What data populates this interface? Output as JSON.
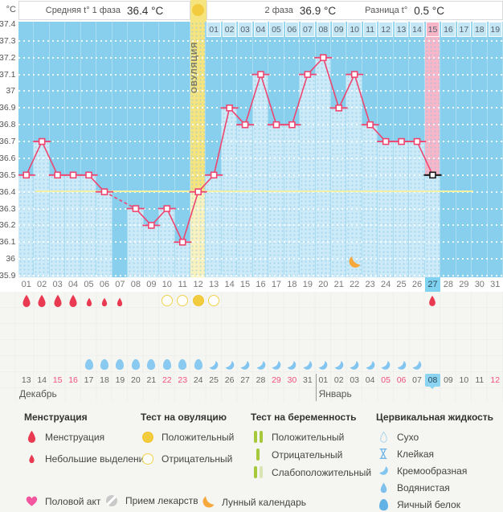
{
  "header": {
    "unit": "°C",
    "phase1_label": "Средняя t° 1 фаза",
    "phase1_value": "36.4 °C",
    "phase2_label": "2 фаза",
    "phase2_value": "36.9 °C",
    "diff_label": "Разница t°",
    "diff_value": "0.5 °C",
    "ovulation_label": "ОВУЛЯЦИЯ"
  },
  "chart_data": {
    "type": "line",
    "unit": "°C",
    "ylim": [
      35.9,
      37.4
    ],
    "ytick_step": 0.1,
    "ytick_labels": [
      "37.4",
      "37.3",
      "37.2",
      "37.1",
      "37",
      "36.9",
      "36.8",
      "36.7",
      "36.6",
      "36.5",
      "36.4",
      "36.3",
      "36.2",
      "36.1",
      "36",
      "35.9"
    ],
    "x_cycle_days": [
      "01",
      "02",
      "03",
      "04",
      "05",
      "06",
      "07",
      "08",
      "09",
      "10",
      "11",
      "12",
      "13",
      "14",
      "15",
      "16",
      "17",
      "18",
      "19",
      "20",
      "21",
      "22",
      "23",
      "24",
      "25",
      "26",
      "27",
      "28",
      "29",
      "30",
      "31"
    ],
    "temps_by_cycle_day": [
      36.5,
      36.7,
      36.5,
      36.5,
      36.5,
      36.4,
      null,
      36.3,
      36.2,
      36.3,
      36.1,
      36.4,
      36.5,
      36.9,
      36.8,
      37.1,
      36.8,
      36.8,
      37.1,
      37.2,
      36.9,
      37.1,
      36.8,
      36.7,
      36.7,
      36.7,
      36.5,
      null,
      null,
      null,
      null
    ],
    "coverline_temp": 36.4,
    "missing_day": 7,
    "ovulation_day": 12,
    "current_day": 27,
    "phase2_day_labels": [
      "01",
      "02",
      "03",
      "04",
      "05",
      "06",
      "07",
      "08",
      "09",
      "10",
      "11",
      "12",
      "13",
      "14",
      "15",
      "16",
      "17",
      "18",
      "19"
    ],
    "phase2_current_label": "15",
    "lunar_calendar_day": 22,
    "grid": "dotted-white",
    "legend_position": "bottom"
  },
  "events": {
    "menstruation_heavy_days": [
      1,
      2,
      3,
      4
    ],
    "menstruation_light_days": [
      5,
      6,
      7
    ],
    "menstruation_new_cycle_days": [
      27
    ],
    "ovulation_test_negative_days": [
      10,
      11,
      13
    ],
    "ovulation_test_positive_days": [
      12
    ],
    "cervical_eggwhite_days": [
      5,
      6,
      7,
      8,
      9,
      10,
      11,
      12
    ],
    "cervical_creamy_days": [
      13,
      14,
      15,
      16,
      17,
      18,
      19,
      20,
      21,
      22,
      23,
      24,
      25,
      26
    ]
  },
  "calendar": {
    "dates": [
      "13",
      "14",
      "15",
      "16",
      "17",
      "18",
      "19",
      "20",
      "21",
      "22",
      "23",
      "24",
      "25",
      "26",
      "27",
      "28",
      "29",
      "30",
      "31",
      "01",
      "02",
      "03",
      "04",
      "05",
      "06",
      "07",
      "08",
      "09",
      "10",
      "11",
      "12"
    ],
    "weekend_indices": [
      2,
      3,
      9,
      10,
      16,
      17,
      23,
      24,
      30
    ],
    "current_index": 26,
    "month_first": "Декабрь",
    "month_second": "Январь",
    "second_month_start_index": 19
  },
  "legend": {
    "sections": [
      {
        "title": "Менструация",
        "items": [
          {
            "icon": "drop-large",
            "label": "Менструация"
          },
          {
            "icon": "drop-small",
            "label": "Небольшие выделения"
          }
        ]
      },
      {
        "title": "Тест на овуляцию",
        "items": [
          {
            "icon": "circle-filled",
            "label": "Положительный"
          },
          {
            "icon": "circle-outline",
            "label": "Отрицательный"
          }
        ]
      },
      {
        "title": "Тест на беременность",
        "items": [
          {
            "icon": "test-two-bars",
            "label": "Положительный"
          },
          {
            "icon": "test-one-bar",
            "label": "Отрицательный"
          },
          {
            "icon": "test-faint-bar",
            "label": "Слабоположительный"
          }
        ]
      },
      {
        "title": "Цервикальная жидкость",
        "items": [
          {
            "icon": "drop-outline",
            "label": "Сухо"
          },
          {
            "icon": "sticky",
            "label": "Клейкая"
          },
          {
            "icon": "crescent",
            "label": "Кремообразная"
          },
          {
            "icon": "drop-filled",
            "label": "Водянистая"
          },
          {
            "icon": "egg-white",
            "label": "Яичный белок"
          }
        ]
      }
    ],
    "footer_items": [
      {
        "icon": "heart",
        "label": "Половой акт"
      },
      {
        "icon": "pill",
        "label": "Прием лекарств"
      },
      {
        "icon": "moon",
        "label": "Лунный календарь"
      }
    ]
  },
  "colors": {
    "plot_bg": "#87CFEC",
    "bar": "#CDEAF8",
    "ovulation_dark": "#F6E47F",
    "ovulation_light": "#FAF2BE",
    "current_pink": "#F8B7C8",
    "line": "#EE4570",
    "coverline": "#F2F0A2",
    "current_marker": "#1a1a1a",
    "axis_highlight": "#7FD2F0",
    "weekend_red": "#F0517E",
    "menstruation_red": "#EA3A52",
    "ovulation_test_yellow": "#F2CC3E",
    "pregnancy_test_green": "#A6C93C",
    "cervical_blue": "#82C5F0",
    "moon_orange": "#F6A83C"
  }
}
